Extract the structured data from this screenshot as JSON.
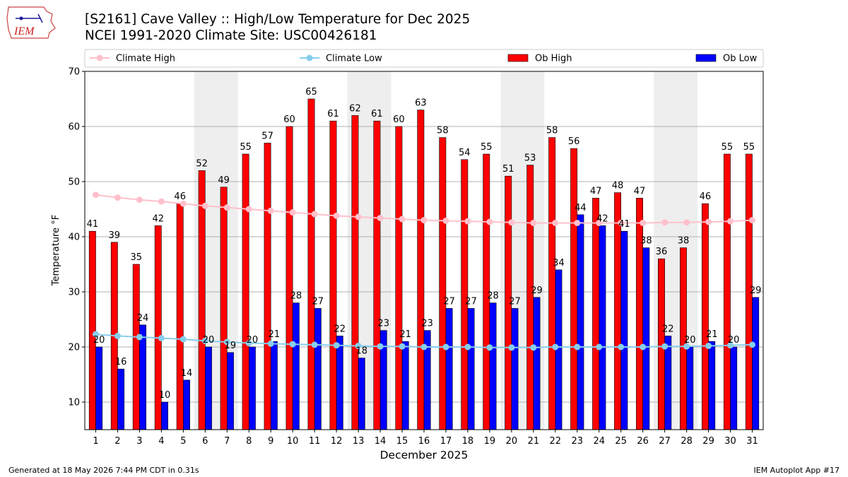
{
  "header": {
    "title_line1": "[S2161] Cave Valley :: High/Low Temperature for Dec 2025",
    "title_line2": "NCEI 1991-2020 Climate Site: USC00426181",
    "logo_text": "IEM"
  },
  "footer": {
    "generated": "Generated at 18 May 2026 7:44 PM CDT in 0.31s",
    "app": "IEM Autoplot App #17"
  },
  "colors": {
    "ob_high": "#ff0000",
    "ob_low": "#0000ff",
    "climate_high": "#ffc0cb",
    "climate_low": "#87ceeb",
    "weekend_shade": "#eeeeee"
  },
  "chart_data": {
    "type": "bar",
    "xlabel": "December 2025",
    "ylabel": "Temperature °F",
    "ylim": [
      5,
      70
    ],
    "yticks": [
      10,
      20,
      30,
      40,
      50,
      60,
      70
    ],
    "grid": true,
    "legend_position": "top",
    "shaded_days": [
      6,
      7,
      13,
      14,
      20,
      21,
      27,
      28
    ],
    "days": [
      1,
      2,
      3,
      4,
      5,
      6,
      7,
      8,
      9,
      10,
      11,
      12,
      13,
      14,
      15,
      16,
      17,
      18,
      19,
      20,
      21,
      22,
      23,
      24,
      25,
      26,
      27,
      28,
      29,
      30,
      31
    ],
    "series": [
      {
        "name": "Climate High",
        "kind": "line",
        "values": [
          47.6,
          47.1,
          46.7,
          46.4,
          46.0,
          45.6,
          45.3,
          45.0,
          44.7,
          44.4,
          44.1,
          43.8,
          43.6,
          43.4,
          43.2,
          43.0,
          42.9,
          42.8,
          42.7,
          42.6,
          42.5,
          42.5,
          42.5,
          42.5,
          42.5,
          42.5,
          42.6,
          42.6,
          42.7,
          42.8,
          43.0
        ]
      },
      {
        "name": "Climate Low",
        "kind": "line",
        "values": [
          22.3,
          22.0,
          21.8,
          21.6,
          21.4,
          21.1,
          20.9,
          20.7,
          20.6,
          20.5,
          20.4,
          20.3,
          20.2,
          20.1,
          20.1,
          20.0,
          20.0,
          20.0,
          19.9,
          19.9,
          19.9,
          20.0,
          20.0,
          20.0,
          20.0,
          20.0,
          20.1,
          20.1,
          20.2,
          20.3,
          20.4
        ]
      },
      {
        "name": "Ob High",
        "kind": "bar",
        "values": [
          41,
          39,
          35,
          42,
          46,
          52,
          49,
          55,
          57,
          60,
          65,
          61,
          62,
          61,
          60,
          63,
          58,
          54,
          55,
          51,
          53,
          58,
          56,
          47,
          48,
          47,
          36,
          38,
          46,
          55,
          55
        ]
      },
      {
        "name": "Ob Low",
        "kind": "bar",
        "values": [
          20,
          16,
          24,
          10,
          14,
          20,
          19,
          20,
          21,
          28,
          27,
          22,
          18,
          23,
          21,
          23,
          27,
          27,
          28,
          27,
          29,
          34,
          44,
          42,
          41,
          38,
          22,
          20,
          21,
          20,
          29
        ]
      }
    ]
  }
}
